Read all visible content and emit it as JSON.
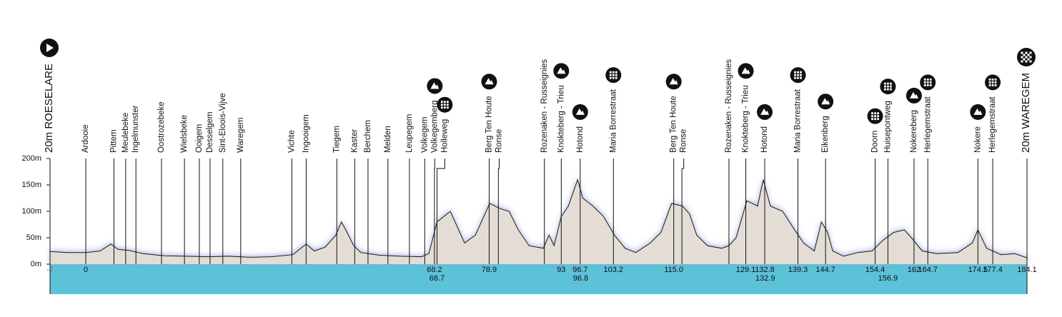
{
  "chart_data": {
    "type": "area",
    "start_label": "20m ROESELARE",
    "finish_label": "20m WAREGEM",
    "x": [
      -7,
      -3.6,
      0,
      2.8,
      4.9,
      6.3,
      8.4,
      11.2,
      15.4,
      19.6,
      23.8,
      28,
      32.1,
      36.3,
      40.5,
      43.1,
      44.7,
      46.8,
      48.9,
      50,
      51,
      52.4,
      53.8,
      57.3,
      61.5,
      65.7,
      67.1,
      67.9,
      68.7,
      71.3,
      72.7,
      74.1,
      76.2,
      79,
      81.1,
      82.8,
      84.6,
      86.7,
      89.5,
      90.6,
      91.6,
      93,
      94.4,
      96.2,
      97.2,
      99.2,
      101.3,
      103.4,
      105.5,
      107.6,
      110.4,
      112.5,
      114.6,
      116.7,
      118.1,
      119.5,
      121.6,
      124.4,
      125.8,
      127.2,
      129.3,
      131.4,
      132.5,
      133.9,
      136.3,
      138.3,
      140.4,
      142.5,
      143.9,
      145.1,
      146.1,
      148.2,
      151,
      153.8,
      155.9,
      158,
      160.1,
      161.5,
      163.6,
      166.4,
      170.6,
      173.4,
      174.5,
      176.2,
      179,
      181.7,
      184.1
    ],
    "values": [
      24,
      22,
      22,
      25,
      38,
      28,
      26,
      20,
      16,
      15,
      14,
      15,
      13,
      14,
      18,
      38,
      25,
      32,
      55,
      80,
      62,
      35,
      22,
      17,
      15,
      14,
      20,
      50,
      80,
      100,
      70,
      40,
      55,
      115,
      105,
      100,
      65,
      35,
      30,
      55,
      35,
      90,
      110,
      160,
      125,
      110,
      90,
      55,
      30,
      22,
      40,
      60,
      115,
      110,
      95,
      55,
      35,
      30,
      35,
      50,
      120,
      110,
      160,
      110,
      100,
      70,
      40,
      25,
      80,
      60,
      25,
      15,
      22,
      25,
      45,
      60,
      65,
      50,
      25,
      20,
      22,
      40,
      65,
      30,
      18,
      20,
      12
    ],
    "xlim": [
      -7,
      184.1
    ],
    "ylim": [
      0,
      200
    ],
    "yticks": [
      {
        "value": 0,
        "label": "0m"
      },
      {
        "value": 50,
        "label": "50m"
      },
      {
        "value": 100,
        "label": "100m"
      },
      {
        "value": 150,
        "label": "150m"
      },
      {
        "value": 200,
        "label": "200m"
      }
    ],
    "fill": "#e3ddd5",
    "line_color": "#1a1a1a",
    "band_color": "#5cc2d8",
    "places": [
      {
        "name": "Ardooie",
        "km": 0
      },
      {
        "name": "Pittem",
        "km": 5.5
      },
      {
        "name": "Meulebeke",
        "km": 7.8
      },
      {
        "name": "Ingelmunster",
        "km": 9.8
      },
      {
        "name": "Oostrozebeke",
        "km": 14.8
      },
      {
        "name": "Wielsbeke",
        "km": 19.3
      },
      {
        "name": "Ooigem",
        "km": 22.2
      },
      {
        "name": "Desselgem",
        "km": 24.3
      },
      {
        "name": "Sint-Eloois-Vijve",
        "km": 26.8
      },
      {
        "name": "Waregem",
        "km": 30.3
      },
      {
        "name": "Vichte",
        "km": 40.3
      },
      {
        "name": "Ingooigem",
        "km": 43.1
      },
      {
        "name": "Tiegem",
        "km": 49.1
      },
      {
        "name": "Kaster",
        "km": 52.6
      },
      {
        "name": "Berchem",
        "km": 55.2
      },
      {
        "name": "Melden",
        "km": 59.1
      },
      {
        "name": "Leupegem",
        "km": 63.3
      },
      {
        "name": "Volkegem",
        "km": 66.3
      },
      {
        "name": "Volkegemberg",
        "km": 68.2,
        "icon": "climb"
      },
      {
        "name": "Holleweg",
        "km": 68.7,
        "icon": "cobbles"
      },
      {
        "name": "Berg Ten Houte",
        "km": 78.9,
        "icon": "climb"
      },
      {
        "name": "Ronse",
        "km": 80.7
      },
      {
        "name": "Rozenaken - Russeignies",
        "km": 89.7
      },
      {
        "name": "Knokteberg - Trieu",
        "km": 93,
        "icon": "climb"
      },
      {
        "name": "Hotond",
        "km": 96.7,
        "icon": "climb"
      },
      {
        "name": "Maria Borrestraat",
        "km": 103.2,
        "icon": "cobbles"
      },
      {
        "name": "Berg Ten Houte",
        "km": 115,
        "icon": "climb"
      },
      {
        "name": "Ronse",
        "km": 116.6
      },
      {
        "name": "Rozenaken - Russeignies",
        "km": 125.8
      },
      {
        "name": "Knokteberg - Trieu",
        "km": 129.1,
        "icon": "climb"
      },
      {
        "name": "Hotond",
        "km": 132.8,
        "icon": "climb"
      },
      {
        "name": "Maria Borrestraat",
        "km": 139.3,
        "icon": "cobbles"
      },
      {
        "name": "Eikenberg",
        "km": 144.7,
        "icon": "climb"
      },
      {
        "name": "Doorn",
        "km": 154.4,
        "icon": "cobbles"
      },
      {
        "name": "Huisepontweg",
        "km": 156.9,
        "icon": "cobbles"
      },
      {
        "name": "Nokereberg",
        "km": 162,
        "icon": "climb"
      },
      {
        "name": "Herlegemstraat",
        "km": 164.7,
        "icon": "cobbles"
      },
      {
        "name": "Nokere",
        "km": 174.5,
        "icon": "climb"
      },
      {
        "name": "Herlegemstraat",
        "km": 177.4,
        "icon": "cobbles"
      }
    ],
    "km_markers": [
      -7,
      0,
      68.2,
      68.7,
      78.9,
      93,
      96.7,
      96.8,
      103.2,
      {
        "value": 115,
        "label": "115.0"
      },
      129.1,
      132.8,
      132.9,
      139.3,
      144.7,
      154.4,
      156.9,
      162,
      164.7,
      174.5,
      177.4,
      184.1
    ]
  }
}
